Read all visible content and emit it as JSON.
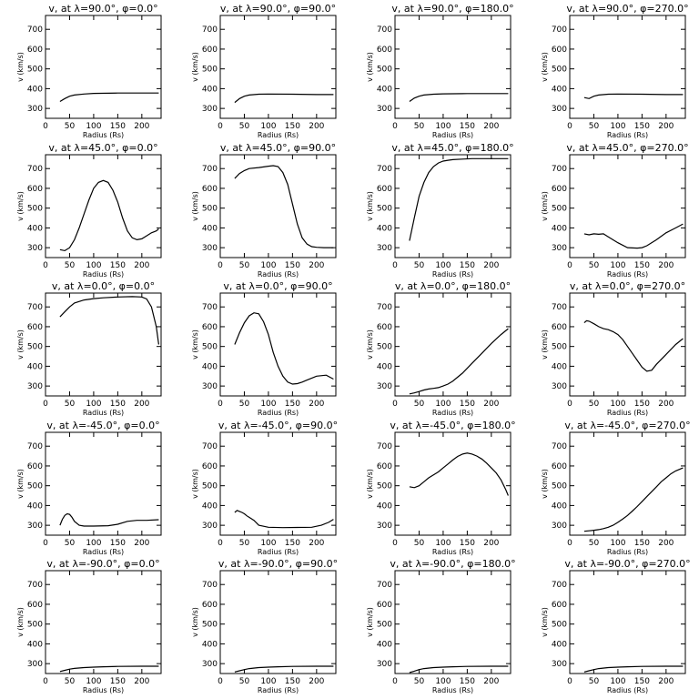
{
  "chart_data": {
    "type": "line",
    "layout": "5x4 grid of panels",
    "xlabel": "Radius (Rs)",
    "ylabel": "v (km/s)",
    "xlim": [
      0,
      240
    ],
    "ylim": [
      250,
      770
    ],
    "xticks": [
      "0",
      "50",
      "100",
      "150",
      "200"
    ],
    "yticks": [
      "300",
      "400",
      "500",
      "600",
      "700"
    ],
    "panels": [
      {
        "title": "v, at λ=90.0°, φ=0.0°",
        "x": [
          30,
          40,
          50,
          60,
          80,
          100,
          150,
          200,
          235
        ],
        "y": [
          335,
          350,
          362,
          368,
          373,
          376,
          378,
          378,
          378
        ]
      },
      {
        "title": "v, at λ=90.0°, φ=90.0°",
        "x": [
          30,
          40,
          50,
          60,
          80,
          100,
          150,
          200,
          235
        ],
        "y": [
          330,
          350,
          362,
          368,
          372,
          373,
          372,
          370,
          370
        ]
      },
      {
        "title": "v, at λ=90.0°, φ=180.0°",
        "x": [
          30,
          40,
          50,
          60,
          80,
          100,
          150,
          200,
          235
        ],
        "y": [
          335,
          352,
          362,
          368,
          372,
          374,
          375,
          375,
          375
        ]
      },
      {
        "title": "v, at λ=90.0°, φ=270.0°",
        "x": [
          30,
          40,
          50,
          60,
          80,
          100,
          150,
          200,
          235
        ],
        "y": [
          355,
          350,
          362,
          368,
          372,
          373,
          372,
          370,
          370
        ]
      },
      {
        "title": "v, at λ=45.0°, φ=0.0°",
        "x": [
          30,
          40,
          50,
          60,
          70,
          80,
          90,
          100,
          110,
          120,
          130,
          140,
          150,
          160,
          170,
          180,
          190,
          200,
          210,
          220,
          230,
          235
        ],
        "y": [
          290,
          285,
          300,
          340,
          400,
          470,
          540,
          600,
          630,
          640,
          630,
          590,
          530,
          450,
          385,
          350,
          340,
          345,
          360,
          375,
          385,
          395
        ]
      },
      {
        "title": "v, at λ=45.0°, φ=90.0°",
        "x": [
          30,
          40,
          50,
          60,
          80,
          100,
          110,
          120,
          130,
          140,
          150,
          160,
          170,
          180,
          190,
          200,
          215,
          235
        ],
        "y": [
          650,
          675,
          690,
          700,
          705,
          712,
          715,
          710,
          680,
          620,
          520,
          420,
          350,
          318,
          305,
          302,
          300,
          300
        ]
      },
      {
        "title": "v, at λ=45.0°, φ=180.0°",
        "x": [
          30,
          40,
          50,
          60,
          70,
          80,
          90,
          100,
          110,
          120,
          140,
          160,
          180,
          200,
          235
        ],
        "y": [
          335,
          450,
          560,
          630,
          680,
          710,
          728,
          738,
          742,
          745,
          748,
          750,
          750,
          750,
          750
        ]
      },
      {
        "title": "v, at λ=45.0°, φ=270.0°",
        "x": [
          30,
          40,
          50,
          60,
          70,
          80,
          100,
          120,
          140,
          150,
          160,
          180,
          200,
          220,
          235
        ],
        "y": [
          370,
          365,
          370,
          368,
          370,
          355,
          325,
          300,
          298,
          300,
          310,
          340,
          375,
          400,
          420
        ]
      },
      {
        "title": "v, at λ=0.0°, φ=0.0°",
        "x": [
          30,
          40,
          50,
          60,
          80,
          100,
          120,
          150,
          180,
          200,
          210,
          220,
          230,
          235
        ],
        "y": [
          650,
          675,
          700,
          720,
          735,
          742,
          746,
          750,
          752,
          750,
          740,
          700,
          600,
          510
        ]
      },
      {
        "title": "v, at λ=0.0°, φ=90.0°",
        "x": [
          30,
          40,
          50,
          60,
          70,
          80,
          90,
          100,
          110,
          120,
          130,
          140,
          150,
          160,
          170,
          180,
          200,
          220,
          235
        ],
        "y": [
          510,
          570,
          620,
          655,
          670,
          665,
          625,
          560,
          470,
          400,
          350,
          320,
          310,
          312,
          320,
          330,
          350,
          355,
          335
        ]
      },
      {
        "title": "v, at λ=0.0°, φ=180.0°",
        "x": [
          30,
          40,
          50,
          60,
          70,
          80,
          90,
          100,
          110,
          120,
          140,
          160,
          180,
          200,
          220,
          235
        ],
        "y": [
          260,
          265,
          272,
          280,
          285,
          288,
          292,
          300,
          310,
          325,
          365,
          415,
          465,
          515,
          560,
          590
        ]
      },
      {
        "title": "v, at λ=0.0°, φ=270.0°",
        "x": [
          30,
          35,
          40,
          50,
          60,
          70,
          80,
          90,
          100,
          110,
          120,
          130,
          140,
          150,
          160,
          170,
          180,
          200,
          220,
          235
        ],
        "y": [
          620,
          630,
          628,
          615,
          600,
          590,
          585,
          575,
          560,
          535,
          500,
          465,
          430,
          395,
          375,
          380,
          410,
          460,
          510,
          540
        ]
      },
      {
        "title": "v, at λ=-45.0°, φ=0.0°",
        "x": [
          30,
          35,
          40,
          45,
          50,
          55,
          60,
          70,
          80,
          100,
          130,
          150,
          170,
          190,
          210,
          235
        ],
        "y": [
          300,
          330,
          350,
          358,
          355,
          340,
          320,
          300,
          296,
          296,
          298,
          305,
          320,
          325,
          325,
          328
        ]
      },
      {
        "title": "v, at λ=-45.0°, φ=90.0°",
        "x": [
          30,
          35,
          40,
          45,
          50,
          55,
          60,
          70,
          80,
          100,
          130,
          160,
          190,
          210,
          225,
          235
        ],
        "y": [
          365,
          375,
          370,
          365,
          358,
          348,
          340,
          325,
          300,
          290,
          288,
          289,
          290,
          300,
          315,
          330
        ]
      },
      {
        "title": "v, at λ=-45.0°, φ=180.0°",
        "x": [
          30,
          40,
          50,
          60,
          70,
          80,
          90,
          100,
          110,
          120,
          130,
          140,
          150,
          160,
          170,
          180,
          190,
          200,
          210,
          220,
          230,
          235
        ],
        "y": [
          495,
          490,
          500,
          520,
          540,
          555,
          570,
          590,
          610,
          630,
          648,
          660,
          665,
          660,
          650,
          635,
          615,
          590,
          565,
          530,
          480,
          450
        ]
      },
      {
        "title": "v, at λ=-45.0°, φ=270.0°",
        "x": [
          30,
          40,
          50,
          60,
          70,
          80,
          90,
          100,
          110,
          120,
          130,
          140,
          150,
          160,
          170,
          180,
          190,
          200,
          210,
          220,
          230,
          235
        ],
        "y": [
          270,
          272,
          275,
          278,
          283,
          290,
          300,
          315,
          332,
          350,
          372,
          395,
          420,
          445,
          470,
          495,
          520,
          540,
          560,
          575,
          585,
          590
        ]
      },
      {
        "title": "v, at λ=-90.0°, φ=0.0°",
        "x": [
          30,
          40,
          50,
          60,
          80,
          100,
          120,
          150,
          200,
          235
        ],
        "y": [
          260,
          266,
          272,
          276,
          280,
          282,
          284,
          286,
          287,
          287
        ]
      },
      {
        "title": "v, at λ=-90.0°, φ=90.0°",
        "x": [
          30,
          40,
          50,
          60,
          80,
          100,
          120,
          150,
          200,
          235
        ],
        "y": [
          258,
          264,
          270,
          275,
          280,
          282,
          284,
          286,
          287,
          287
        ]
      },
      {
        "title": "v, at λ=-90.0°, φ=180.0°",
        "x": [
          30,
          40,
          50,
          60,
          80,
          100,
          120,
          150,
          200,
          235
        ],
        "y": [
          255,
          262,
          270,
          275,
          280,
          282,
          284,
          286,
          287,
          287
        ]
      },
      {
        "title": "v, at λ=-90.0°, φ=270.0°",
        "x": [
          30,
          40,
          50,
          60,
          80,
          100,
          120,
          150,
          200,
          235
        ],
        "y": [
          258,
          264,
          270,
          275,
          280,
          282,
          284,
          286,
          287,
          287
        ]
      }
    ]
  }
}
